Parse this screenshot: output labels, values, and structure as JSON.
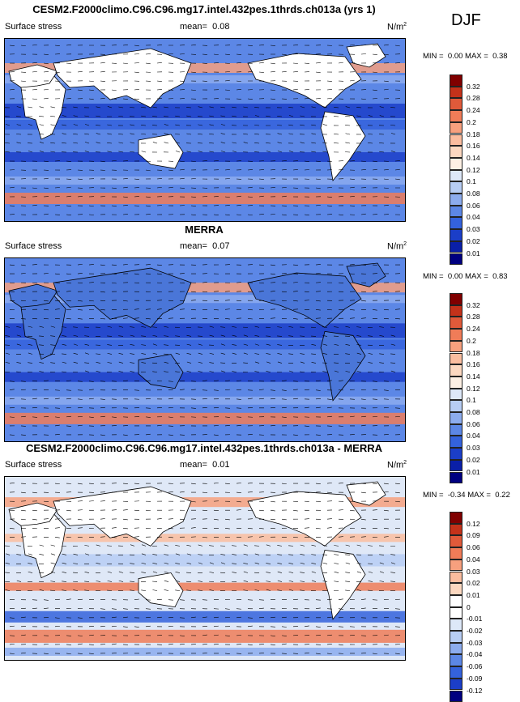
{
  "season": "DJF",
  "panels": [
    {
      "title": "CESM2.F2000climo.C96.C96.mg17.intel.432pes.1thrds.ch013a (yrs 1)",
      "variable": "Surface stress",
      "mean_label": "mean=",
      "mean": "0.08",
      "units": "N/m",
      "units_exp": "2",
      "min_label": "MIN =",
      "min": "0.00",
      "max_label": "MAX =",
      "max": "0.38",
      "colorbar_labels": [
        "0.32",
        "0.28",
        "0.24",
        "0.2",
        "0.18",
        "0.16",
        "0.14",
        "0.12",
        "0.1",
        "0.08",
        "0.06",
        "0.04",
        "0.03",
        "0.02",
        "0.01"
      ]
    },
    {
      "title": "MERRA",
      "variable": "Surface stress",
      "mean_label": "mean=",
      "mean": "0.07",
      "units": "N/m",
      "units_exp": "2",
      "min_label": "MIN =",
      "min": "0.00",
      "max_label": "MAX =",
      "max": "0.83",
      "colorbar_labels": [
        "0.32",
        "0.28",
        "0.24",
        "0.2",
        "0.18",
        "0.16",
        "0.14",
        "0.12",
        "0.1",
        "0.08",
        "0.06",
        "0.04",
        "0.03",
        "0.02",
        "0.01"
      ]
    },
    {
      "title": "CESM2.F2000climo.C96.C96.mg17.intel.432pes.1thrds.ch013a - MERRA",
      "variable": "Surface stress",
      "mean_label": "mean=",
      "mean": "0.01",
      "units": "N/m",
      "units_exp": "2",
      "min_label": "MIN =",
      "min": "-0.34",
      "max_label": "MAX =",
      "max": "0.22",
      "colorbar_labels": [
        "0.12",
        "0.09",
        "0.06",
        "0.04",
        "0.03",
        "0.02",
        "0.01",
        "0",
        "-0.01",
        "-0.02",
        "-0.03",
        "-0.04",
        "-0.06",
        "-0.09",
        "-0.12"
      ]
    }
  ],
  "colors": {
    "seq": [
      "#800000",
      "#c4321a",
      "#e05a3a",
      "#f07c58",
      "#f7a07e",
      "#fbbd9f",
      "#fcd8c0",
      "#fdf0e4",
      "#dde8f8",
      "#b7cdf4",
      "#8cacee",
      "#5c87e6",
      "#3462dc",
      "#1b3ec8",
      "#0a1fa8",
      "#000080"
    ],
    "div": [
      "#800000",
      "#c4321a",
      "#e05a3a",
      "#f07c58",
      "#f7a07e",
      "#fbbd9f",
      "#fcd8c0",
      "#ffffff",
      "#ffffff",
      "#dde8f8",
      "#b7cdf4",
      "#8cacee",
      "#5c87e6",
      "#3462dc",
      "#1b3ec8",
      "#000080"
    ]
  },
  "chart_data": [
    {
      "type": "heatmap",
      "title": "CESM2.F2000climo.C96.C96.mg17.intel.432pes.1thrds.ch013a (yrs 1)",
      "variable": "Surface stress",
      "units": "N/m2",
      "mean": 0.08,
      "min": 0.0,
      "max": 0.38,
      "levels": [
        0.01,
        0.02,
        0.03,
        0.04,
        0.06,
        0.08,
        0.1,
        0.12,
        0.14,
        0.16,
        0.18,
        0.2,
        0.24,
        0.28,
        0.32
      ],
      "overlay": "wind stress vectors"
    },
    {
      "type": "heatmap",
      "title": "MERRA",
      "variable": "Surface stress",
      "units": "N/m2",
      "mean": 0.07,
      "min": 0.0,
      "max": 0.83,
      "levels": [
        0.01,
        0.02,
        0.03,
        0.04,
        0.06,
        0.08,
        0.1,
        0.12,
        0.14,
        0.16,
        0.18,
        0.2,
        0.24,
        0.28,
        0.32
      ],
      "overlay": "wind stress vectors"
    },
    {
      "type": "heatmap",
      "title": "CESM2.F2000climo.C96.C96.mg17.intel.432pes.1thrds.ch013a - MERRA",
      "variable": "Surface stress",
      "units": "N/m2",
      "mean": 0.01,
      "min": -0.34,
      "max": 0.22,
      "levels": [
        -0.12,
        -0.09,
        -0.06,
        -0.04,
        -0.03,
        -0.02,
        -0.01,
        0,
        0.01,
        0.02,
        0.03,
        0.04,
        0.06,
        0.09,
        0.12
      ],
      "overlay": "wind stress vectors"
    }
  ]
}
